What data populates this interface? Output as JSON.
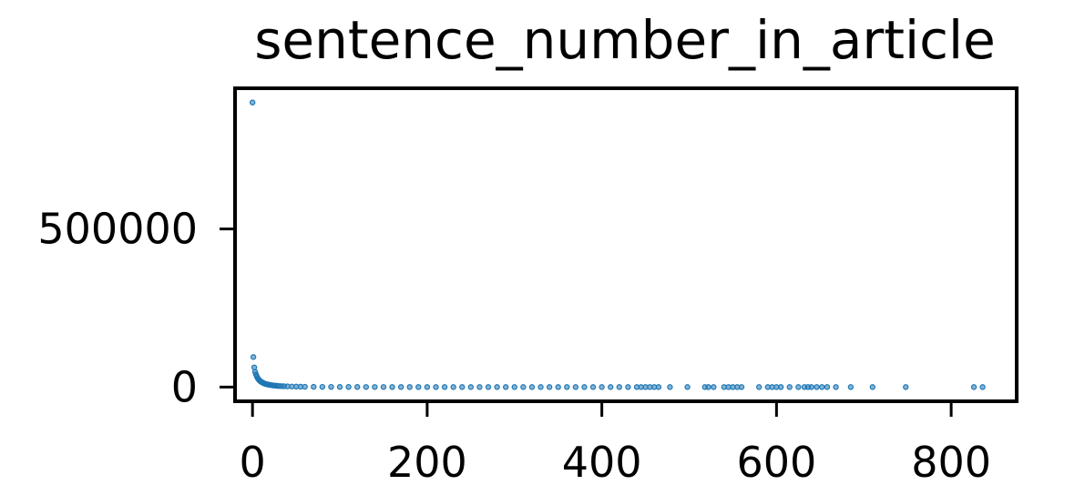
{
  "chart_data": {
    "type": "scatter",
    "title": "sentence_number_in_article",
    "xlabel": "",
    "ylabel": "",
    "xlim": [
      -20,
      875
    ],
    "ylim": [
      -45000,
      945000
    ],
    "x_ticks": [
      {
        "value": 0,
        "label": "0"
      },
      {
        "value": 200,
        "label": "200"
      },
      {
        "value": 400,
        "label": "400"
      },
      {
        "value": 600,
        "label": "600"
      },
      {
        "value": 800,
        "label": "800"
      }
    ],
    "y_ticks": [
      {
        "value": 0,
        "label": "0"
      },
      {
        "value": 500000,
        "label": "500000"
      }
    ],
    "grid": false,
    "legend": "none",
    "marker_color": "#1f77b4",
    "series": [
      {
        "points": [
          [
            0,
            900000
          ],
          [
            1,
            95000
          ],
          [
            2,
            62000
          ],
          [
            3,
            48000
          ],
          [
            4,
            40000
          ],
          [
            5,
            33000
          ],
          [
            6,
            28000
          ],
          [
            7,
            24000
          ],
          [
            8,
            21000
          ],
          [
            9,
            18500
          ],
          [
            10,
            16500
          ],
          [
            11,
            14800
          ],
          [
            12,
            13300
          ],
          [
            13,
            12000
          ],
          [
            14,
            10900
          ],
          [
            15,
            10000
          ],
          [
            16,
            9200
          ],
          [
            17,
            8500
          ],
          [
            18,
            7800
          ],
          [
            19,
            7200
          ],
          [
            20,
            6700
          ],
          [
            22,
            5800
          ],
          [
            24,
            5000
          ],
          [
            26,
            4400
          ],
          [
            28,
            3900
          ],
          [
            30,
            3400
          ],
          [
            33,
            2900
          ],
          [
            36,
            2500
          ],
          [
            40,
            2100
          ],
          [
            45,
            1700
          ],
          [
            50,
            1400
          ],
          [
            55,
            1200
          ],
          [
            60,
            1000
          ],
          [
            70,
            800
          ],
          [
            80,
            650
          ],
          [
            90,
            520
          ],
          [
            100,
            430
          ],
          [
            110,
            360
          ],
          [
            120,
            300
          ],
          [
            130,
            260
          ],
          [
            140,
            220
          ],
          [
            150,
            190
          ],
          [
            160,
            165
          ],
          [
            170,
            145
          ],
          [
            180,
            128
          ],
          [
            190,
            112
          ],
          [
            200,
            100
          ],
          [
            210,
            90
          ],
          [
            220,
            80
          ],
          [
            230,
            72
          ],
          [
            240,
            65
          ],
          [
            250,
            58
          ],
          [
            260,
            52
          ],
          [
            270,
            47
          ],
          [
            280,
            43
          ],
          [
            290,
            39
          ],
          [
            300,
            35
          ],
          [
            310,
            32
          ],
          [
            320,
            29
          ],
          [
            330,
            26
          ],
          [
            340,
            24
          ],
          [
            350,
            22
          ],
          [
            360,
            20
          ],
          [
            370,
            18
          ],
          [
            380,
            16
          ],
          [
            390,
            15
          ],
          [
            400,
            14
          ],
          [
            410,
            12
          ],
          [
            420,
            11
          ],
          [
            430,
            10
          ],
          [
            440,
            9
          ],
          [
            445,
            8
          ],
          [
            450,
            7
          ],
          [
            455,
            7
          ],
          [
            460,
            6
          ],
          [
            465,
            6
          ],
          [
            478,
            5
          ],
          [
            498,
            4
          ],
          [
            518,
            3
          ],
          [
            522,
            3
          ],
          [
            528,
            3
          ],
          [
            540,
            3
          ],
          [
            545,
            3
          ],
          [
            550,
            2
          ],
          [
            555,
            2
          ],
          [
            560,
            2
          ],
          [
            580,
            2
          ],
          [
            590,
            2
          ],
          [
            595,
            2
          ],
          [
            600,
            2
          ],
          [
            605,
            2
          ],
          [
            615,
            1
          ],
          [
            625,
            1
          ],
          [
            632,
            1
          ],
          [
            636,
            1
          ],
          [
            640,
            1
          ],
          [
            646,
            1
          ],
          [
            652,
            1
          ],
          [
            658,
            1
          ],
          [
            668,
            1
          ],
          [
            685,
            1
          ],
          [
            710,
            1
          ],
          [
            748,
            1
          ],
          [
            826,
            1
          ],
          [
            836,
            1
          ]
        ]
      }
    ]
  }
}
